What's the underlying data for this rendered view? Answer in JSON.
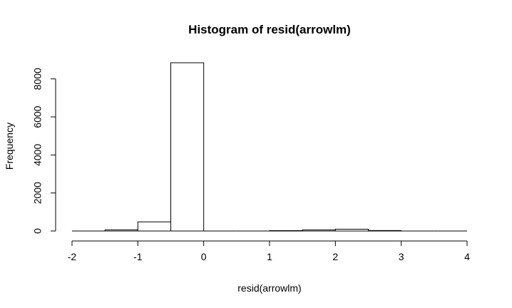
{
  "chart_data": {
    "type": "bar",
    "title": "Histogram of resid(arrowlm)",
    "xlabel": "resid(arrowlm)",
    "ylabel": "Frequency",
    "xlim": [
      -2,
      4
    ],
    "ylim": [
      0,
      8800
    ],
    "x_ticks": [
      -2,
      -1,
      0,
      1,
      2,
      3,
      4
    ],
    "y_ticks": [
      0,
      2000,
      4000,
      6000,
      8000
    ],
    "grid": false,
    "bins": [
      {
        "start": -2.0,
        "end": -1.5,
        "value": 0
      },
      {
        "start": -1.5,
        "end": -1.0,
        "value": 60
      },
      {
        "start": -1.0,
        "end": -0.5,
        "value": 480
      },
      {
        "start": -0.5,
        "end": 0.0,
        "value": 8850
      },
      {
        "start": 0.0,
        "end": 0.5,
        "value": 0
      },
      {
        "start": 0.5,
        "end": 1.0,
        "value": 0
      },
      {
        "start": 1.0,
        "end": 1.5,
        "value": 20
      },
      {
        "start": 1.5,
        "end": 2.0,
        "value": 55
      },
      {
        "start": 2.0,
        "end": 2.5,
        "value": 95
      },
      {
        "start": 2.5,
        "end": 3.0,
        "value": 25
      },
      {
        "start": 3.0,
        "end": 3.5,
        "value": 0
      },
      {
        "start": 3.5,
        "end": 4.0,
        "value": 0
      }
    ]
  }
}
